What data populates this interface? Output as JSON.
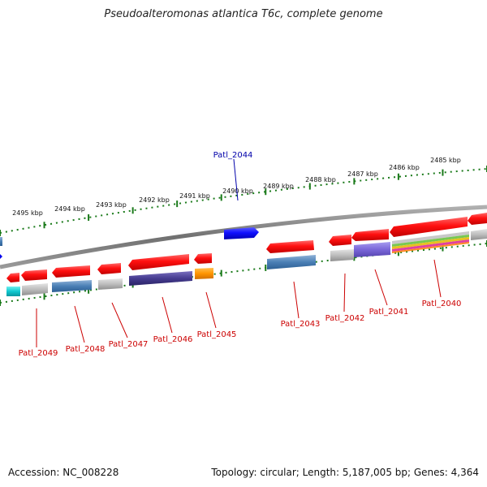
{
  "title": "Pseudoalteromonas atlantica T6c, complete genome",
  "accession": "Accession: NC_008228",
  "summary": "Topology: circular; Length: 5,187,005 bp; Genes: 4,364",
  "colors": {
    "forward_gene": "#0000ee",
    "reverse_gene": "#ee0000",
    "forward_label": "#0000aa",
    "reverse_label": "#cc0000",
    "ruler_ticks": "#1a7a1a",
    "backbone": "#808080"
  },
  "kbp_labels": [
    "2495 kbp",
    "2494 kbp",
    "2493 kbp",
    "2492 kbp",
    "2491 kbp",
    "2490 kbp",
    "2489 kbp",
    "2488 kbp",
    "2487 kbp",
    "2486 kbp",
    "2485 kbp"
  ],
  "genes": [
    {
      "label": "Patl_2044",
      "strand": "forward"
    },
    {
      "label": "Patl_2049",
      "strand": "reverse"
    },
    {
      "label": "Patl_2048",
      "strand": "reverse"
    },
    {
      "label": "Patl_2047",
      "strand": "reverse"
    },
    {
      "label": "Patl_2046",
      "strand": "reverse"
    },
    {
      "label": "Patl_2045",
      "strand": "reverse"
    },
    {
      "label": "Patl_2043",
      "strand": "reverse"
    },
    {
      "label": "Patl_2042",
      "strand": "reverse"
    },
    {
      "label": "Patl_2041",
      "strand": "reverse"
    },
    {
      "label": "Patl_2040",
      "strand": "reverse"
    }
  ]
}
